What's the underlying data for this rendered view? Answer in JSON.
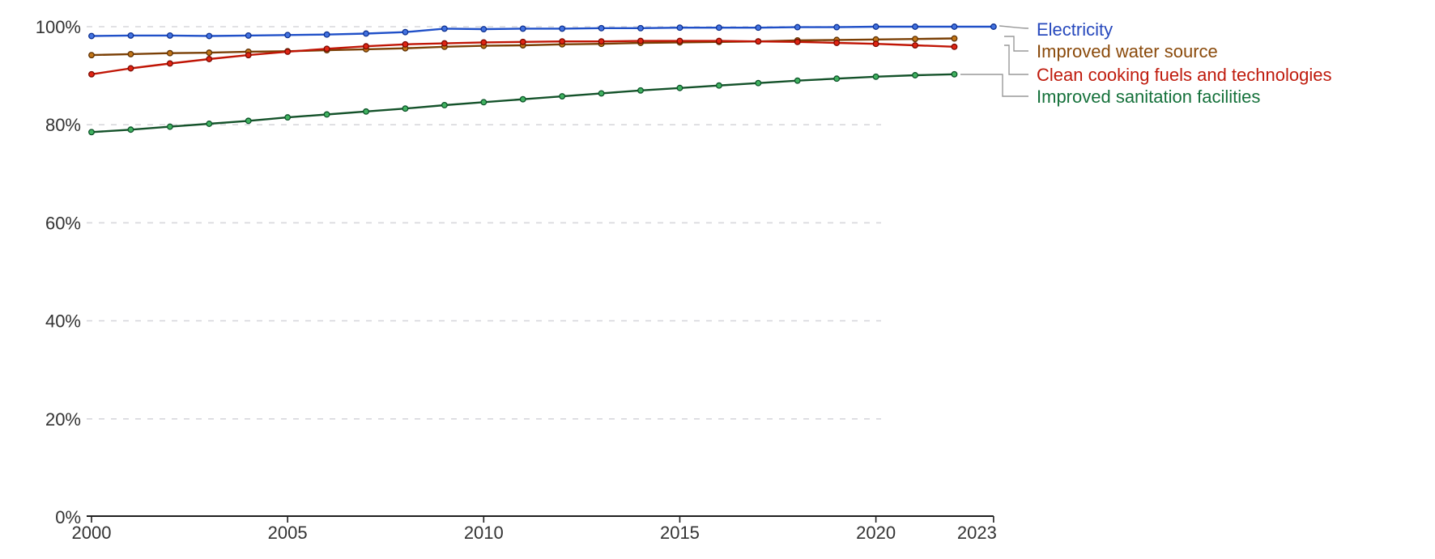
{
  "chart_data": {
    "type": "line",
    "title": "",
    "xlabel": "",
    "ylabel": "",
    "x_start": 2000,
    "x_end": 2023,
    "ylim": [
      0,
      100
    ],
    "y_tick_values": [
      0,
      20,
      40,
      60,
      80,
      100
    ],
    "y_tick_suffix": "%",
    "x_tick_labels": [
      "2000",
      "2005",
      "2010",
      "2015",
      "2020",
      "2023"
    ],
    "x_tick_values": [
      2000,
      2005,
      2010,
      2015,
      2020,
      2023
    ],
    "grid": "horizontal-dashed",
    "legend_position": "right",
    "series": [
      {
        "key": "electricity",
        "label": "Electricity",
        "color_line": "#2050c8",
        "color_marker_fill": "#4272e0",
        "color_marker_stroke": "#0f3190",
        "color_text": "#2749bd",
        "start_year": 2000,
        "end_year": 2023,
        "values": [
          98.1,
          98.2,
          98.2,
          98.1,
          98.2,
          98.3,
          98.4,
          98.6,
          98.9,
          99.6,
          99.5,
          99.6,
          99.6,
          99.7,
          99.7,
          99.8,
          99.8,
          99.8,
          99.9,
          99.9,
          100,
          100,
          100,
          100
        ]
      },
      {
        "key": "water",
        "label": "Improved water source",
        "color_line": "#7a3f05",
        "color_marker_fill": "#c17517",
        "color_marker_stroke": "#5f3104",
        "color_text": "#8a4a0b",
        "start_year": 2000,
        "end_year": 2022,
        "values": [
          94.2,
          94.4,
          94.6,
          94.7,
          94.9,
          95.0,
          95.2,
          95.4,
          95.6,
          95.9,
          96.1,
          96.2,
          96.4,
          96.5,
          96.7,
          96.8,
          96.9,
          97.0,
          97.2,
          97.3,
          97.4,
          97.5,
          97.6
        ]
      },
      {
        "key": "cooking",
        "label": "Clean cooking fuels and technologies",
        "color_line": "#c01505",
        "color_marker_fill": "#e02513",
        "color_marker_stroke": "#7c0a01",
        "color_text": "#bf1b0d",
        "start_year": 2000,
        "end_year": 2022,
        "values": [
          90.3,
          91.5,
          92.5,
          93.4,
          94.2,
          94.9,
          95.5,
          96.0,
          96.4,
          96.6,
          96.8,
          96.9,
          97.0,
          97.0,
          97.1,
          97.1,
          97.1,
          97.0,
          96.9,
          96.7,
          96.5,
          96.2,
          95.9
        ]
      },
      {
        "key": "sanitation",
        "label": "Improved sanitation facilities",
        "color_line": "#14522a",
        "color_marker_fill": "#41b260",
        "color_marker_stroke": "#0c5429",
        "color_text": "#15713b",
        "start_year": 2000,
        "end_year": 2022,
        "values": [
          78.5,
          79.0,
          79.6,
          80.2,
          80.8,
          81.5,
          82.1,
          82.7,
          83.3,
          84.0,
          84.6,
          85.2,
          85.8,
          86.4,
          87.0,
          87.5,
          88.0,
          88.5,
          89.0,
          89.4,
          89.8,
          90.1,
          90.3
        ]
      }
    ],
    "style": {
      "grid_color": "#d7d7dc",
      "axis_color": "#1f1f1f",
      "tick_label_color": "#333333",
      "connector_color": "#999999",
      "background": "#ffffff"
    }
  }
}
